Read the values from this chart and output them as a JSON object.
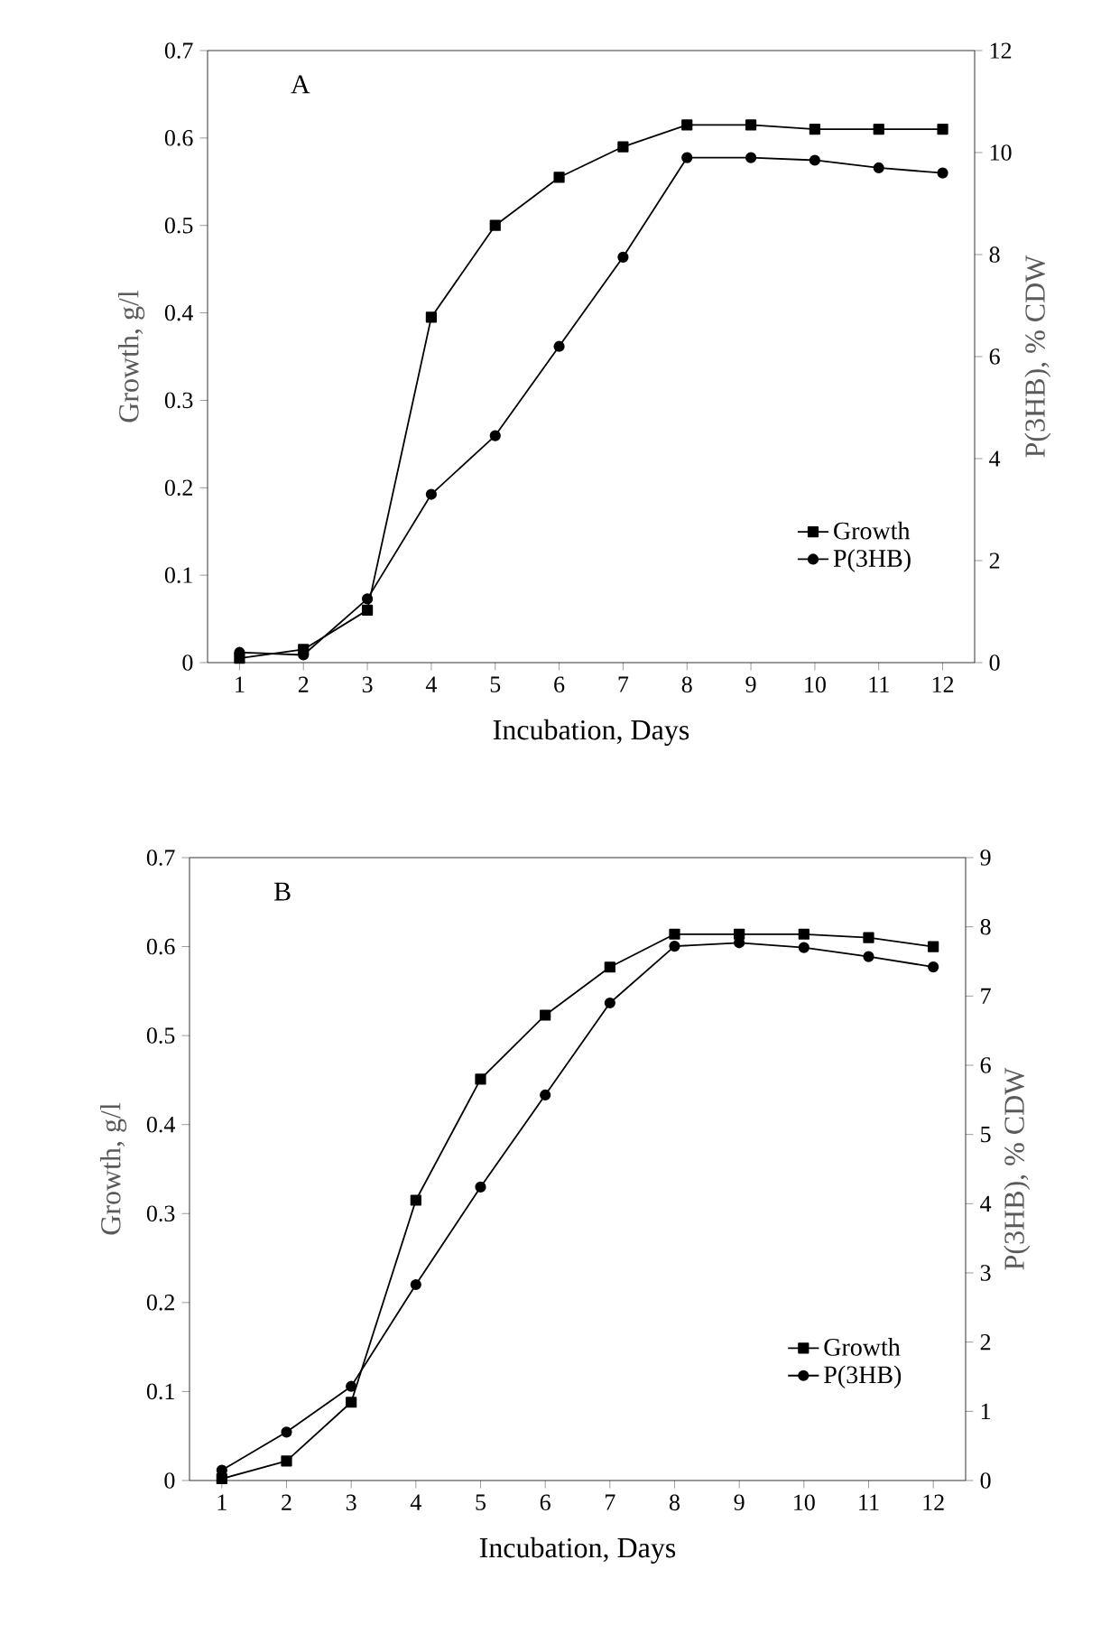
{
  "chart_data": [
    {
      "type": "line",
      "title": "A",
      "xlabel": "Incubation, Days",
      "ylabel": "Growth, g/l",
      "y2label": "P(3HB), % CDW",
      "categories": [
        "1",
        "2",
        "3",
        "4",
        "5",
        "6",
        "7",
        "8",
        "9",
        "10",
        "11",
        "12"
      ],
      "series": [
        {
          "name": "Growth",
          "color": "#000000",
          "marker": "square",
          "values": [
            0.005,
            0.015,
            0.06,
            0.395,
            0.5,
            0.555,
            0.59,
            0.615,
            0.615,
            0.61,
            0.61,
            0.61
          ]
        },
        {
          "name": "P(3HB)",
          "color": "#000000",
          "marker": "circle",
          "axis": "y2",
          "values": [
            0.2,
            0.15,
            1.25,
            3.3,
            4.45,
            6.2,
            7.95,
            9.9,
            9.9,
            9.85,
            9.7,
            9.6
          ]
        }
      ],
      "ylim": [
        0,
        0.7
      ],
      "yticks": [
        0,
        0.1,
        0.2,
        0.3,
        0.4,
        0.5,
        0.6,
        0.7
      ],
      "y2lim": [
        0,
        12
      ],
      "y2ticks": [
        0,
        2,
        4,
        6,
        8,
        10,
        12
      ],
      "legend": "bottom right"
    },
    {
      "type": "line",
      "title": "B",
      "xlabel": "Incubation, Days",
      "ylabel": "Growth, g/l",
      "y2label": "P(3HB), % CDW",
      "categories": [
        "1",
        "2",
        "3",
        "4",
        "5",
        "6",
        "7",
        "8",
        "9",
        "10",
        "11",
        "12"
      ],
      "series": [
        {
          "name": "Growth",
          "color": "#000000",
          "marker": "square",
          "values": [
            0.002,
            0.022,
            0.088,
            0.315,
            0.451,
            0.523,
            0.577,
            0.614,
            0.614,
            0.614,
            0.61,
            0.6
          ]
        },
        {
          "name": "P(3HB)",
          "color": "#000000",
          "marker": "circle",
          "axis": "y2",
          "values": [
            0.15,
            0.7,
            1.36,
            2.83,
            4.24,
            5.57,
            6.9,
            7.72,
            7.77,
            7.7,
            7.57,
            7.42
          ]
        }
      ],
      "ylim": [
        0,
        0.7
      ],
      "yticks": [
        0,
        0.1,
        0.2,
        0.3,
        0.4,
        0.5,
        0.6,
        0.7
      ],
      "y2lim": [
        0,
        9
      ],
      "y2ticks": [
        0,
        1,
        2,
        3,
        4,
        5,
        6,
        7,
        8,
        9
      ],
      "legend": "bottom right"
    }
  ]
}
